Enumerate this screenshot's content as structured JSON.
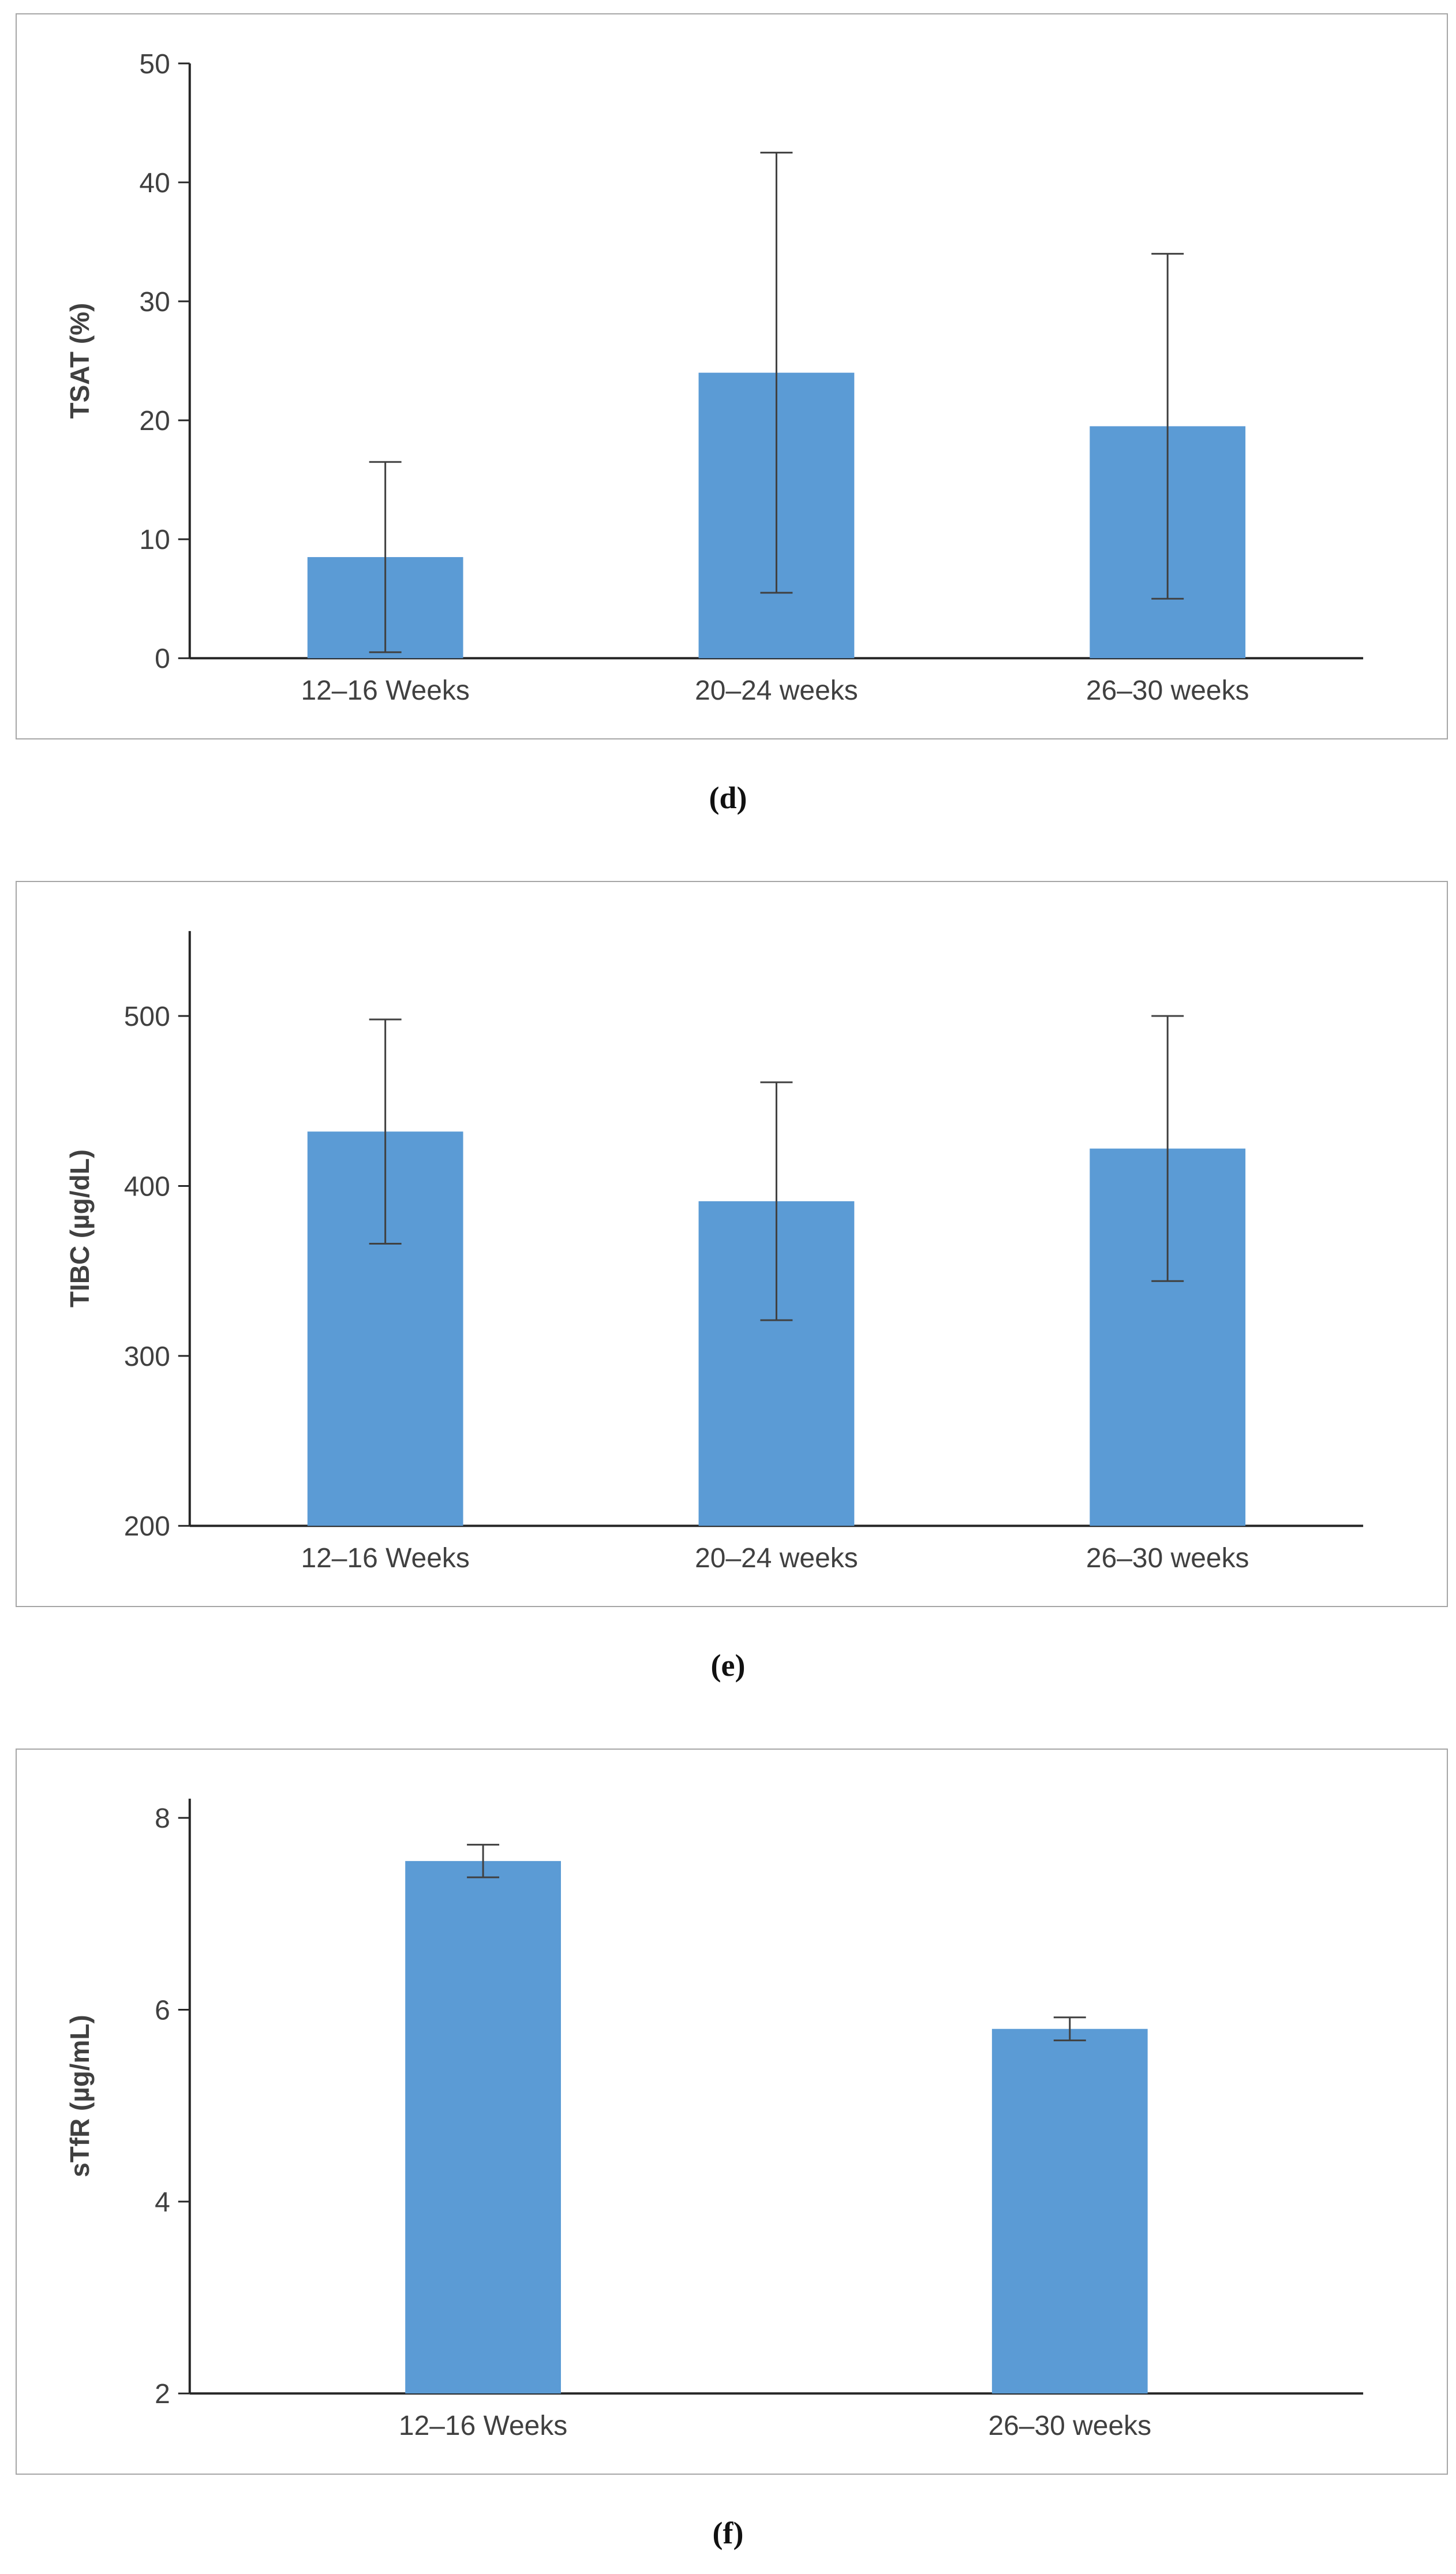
{
  "colors": {
    "bar": "#5b9bd5",
    "axis": "#262626",
    "error": "#404040",
    "text": "#404040",
    "panel_border": "#a6a6a6",
    "caption_text": "#111111"
  },
  "captions": {
    "d": "(d)",
    "e": "(e)",
    "f": "(f)"
  },
  "chart_data": [
    {
      "type": "bar",
      "panel_label": "(d)",
      "title": "",
      "xlabel": "",
      "ylabel": "TSAT (%)",
      "categories": [
        "12–16 Weeks",
        "20–24 weeks",
        "26–30 weeks"
      ],
      "values": [
        8.5,
        24,
        19.5
      ],
      "errors": [
        8,
        18.5,
        14.5
      ],
      "ylim": [
        0,
        50
      ],
      "yticks": [
        0,
        10,
        20,
        30,
        40,
        50
      ],
      "grid": false,
      "legend": "none"
    },
    {
      "type": "bar",
      "panel_label": "(e)",
      "title": "",
      "xlabel": "",
      "ylabel": "TIBC (µg/dL)",
      "categories": [
        "12–16 Weeks",
        "20–24 weeks",
        "26–30 weeks"
      ],
      "values": [
        432,
        391,
        422
      ],
      "errors": [
        66,
        70,
        78
      ],
      "ylim": [
        200,
        550
      ],
      "yticks": [
        200,
        300,
        400,
        500
      ],
      "grid": false,
      "legend": "none"
    },
    {
      "type": "bar",
      "panel_label": "(f)",
      "title": "",
      "xlabel": "",
      "ylabel": "sTfR (µg/mL)",
      "categories": [
        "12–16 Weeks",
        "26–30 weeks"
      ],
      "values": [
        7.55,
        5.8
      ],
      "errors": [
        0.17,
        0.12
      ],
      "ylim": [
        2,
        8.2
      ],
      "yticks": [
        2,
        4,
        6,
        8
      ],
      "grid": false,
      "legend": "none"
    }
  ]
}
